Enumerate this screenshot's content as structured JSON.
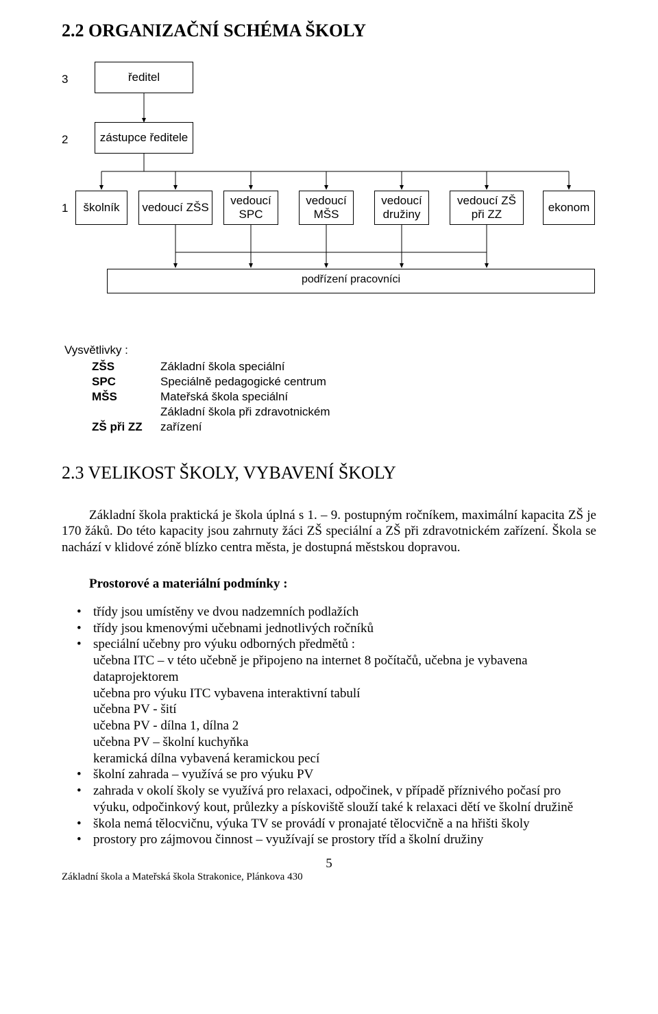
{
  "heading": "2.2 ORGANIZAČNÍ SCHÉMA ŠKOLY",
  "chart": {
    "levels": {
      "l3": "3",
      "l2": "2",
      "l1": "1"
    },
    "boxes": {
      "reditel": "ředitel",
      "zastupce": "zástupce ředitele",
      "skolnik": "školník",
      "vedouci_zss": "vedoucí ZŠS",
      "vedouci_spc": "vedoucí SPC",
      "vedouci_mss": "vedoucí MŠS",
      "vedouci_druziny": "vedoucí družiny",
      "vedouci_zs_zz": "vedoucí ZŠ při ZZ",
      "ekonom": "ekonom",
      "podrizeni": "podřízení pracovníci"
    },
    "font_family": "Arial",
    "font_size": 17,
    "border_color": "#000000",
    "bg": "#ffffff"
  },
  "legend": {
    "title": "Vysvětlivky :",
    "items": [
      {
        "key": "ZŠS",
        "val": "Základní škola speciální"
      },
      {
        "key": "SPC",
        "val": "Speciálně pedagogické centrum"
      },
      {
        "key": "MŠS",
        "val": "Mateřská škola speciální"
      },
      {
        "key": "",
        "val": "Základní škola při zdravotnickém"
      },
      {
        "key": "ZŠ při ZZ",
        "val": "zařízení"
      }
    ]
  },
  "subsection": "2.3 VELIKOST ŠKOLY, VYBAVENÍ ŠKOLY",
  "paragraph": "Základní škola praktická je škola úplná s 1. – 9. postupným ročníkem, maximální kapacita ZŠ je 170 žáků. Do této kapacity jsou zahrnuty žáci ZŠ speciální a ZŠ při zdravotnickém zařízení. Škola se nachází v klidové zóně blízko centra města, je dostupná městskou dopravou.",
  "subhead": "Prostorové a materiální podmínky :",
  "bullets": [
    {
      "lines": [
        "třídy jsou umístěny ve dvou nadzemních podlažích"
      ]
    },
    {
      "lines": [
        "třídy jsou kmenovými učebnami jednotlivých ročníků"
      ]
    },
    {
      "lines": [
        "speciální učebny pro výuku odborných předmětů :",
        "učebna ITC – v této učebně je připojeno na internet 8 počítačů, učebna je vybavena dataprojektorem",
        "učebna pro výuku ITC vybavena interaktivní tabulí",
        "učebna PV - šití",
        "učebna PV - dílna 1, dílna 2",
        "učebna PV – školní kuchyňka",
        "keramická dílna  vybavená keramickou pecí"
      ]
    },
    {
      "lines": [
        "školní zahrada – využívá se pro výuku PV"
      ]
    },
    {
      "lines": [
        "zahrada v okolí školy se využívá pro relaxaci, odpočinek, v případě příznivého počasí pro výuku, odpočinkový kout, průlezky a pískoviště slouží také k relaxaci dětí ve školní družině"
      ]
    },
    {
      "lines": [
        "škola nemá tělocvičnu, výuka TV se provádí v pronajaté tělocvičně a na hřišti školy"
      ]
    },
    {
      "lines": [
        "prostory pro zájmovou činnost – využívají se prostory tříd a školní družiny"
      ]
    }
  ],
  "page_number": "5",
  "footer_line": "Základní škola a Mateřská škola Strakonice, Plánkova 430"
}
